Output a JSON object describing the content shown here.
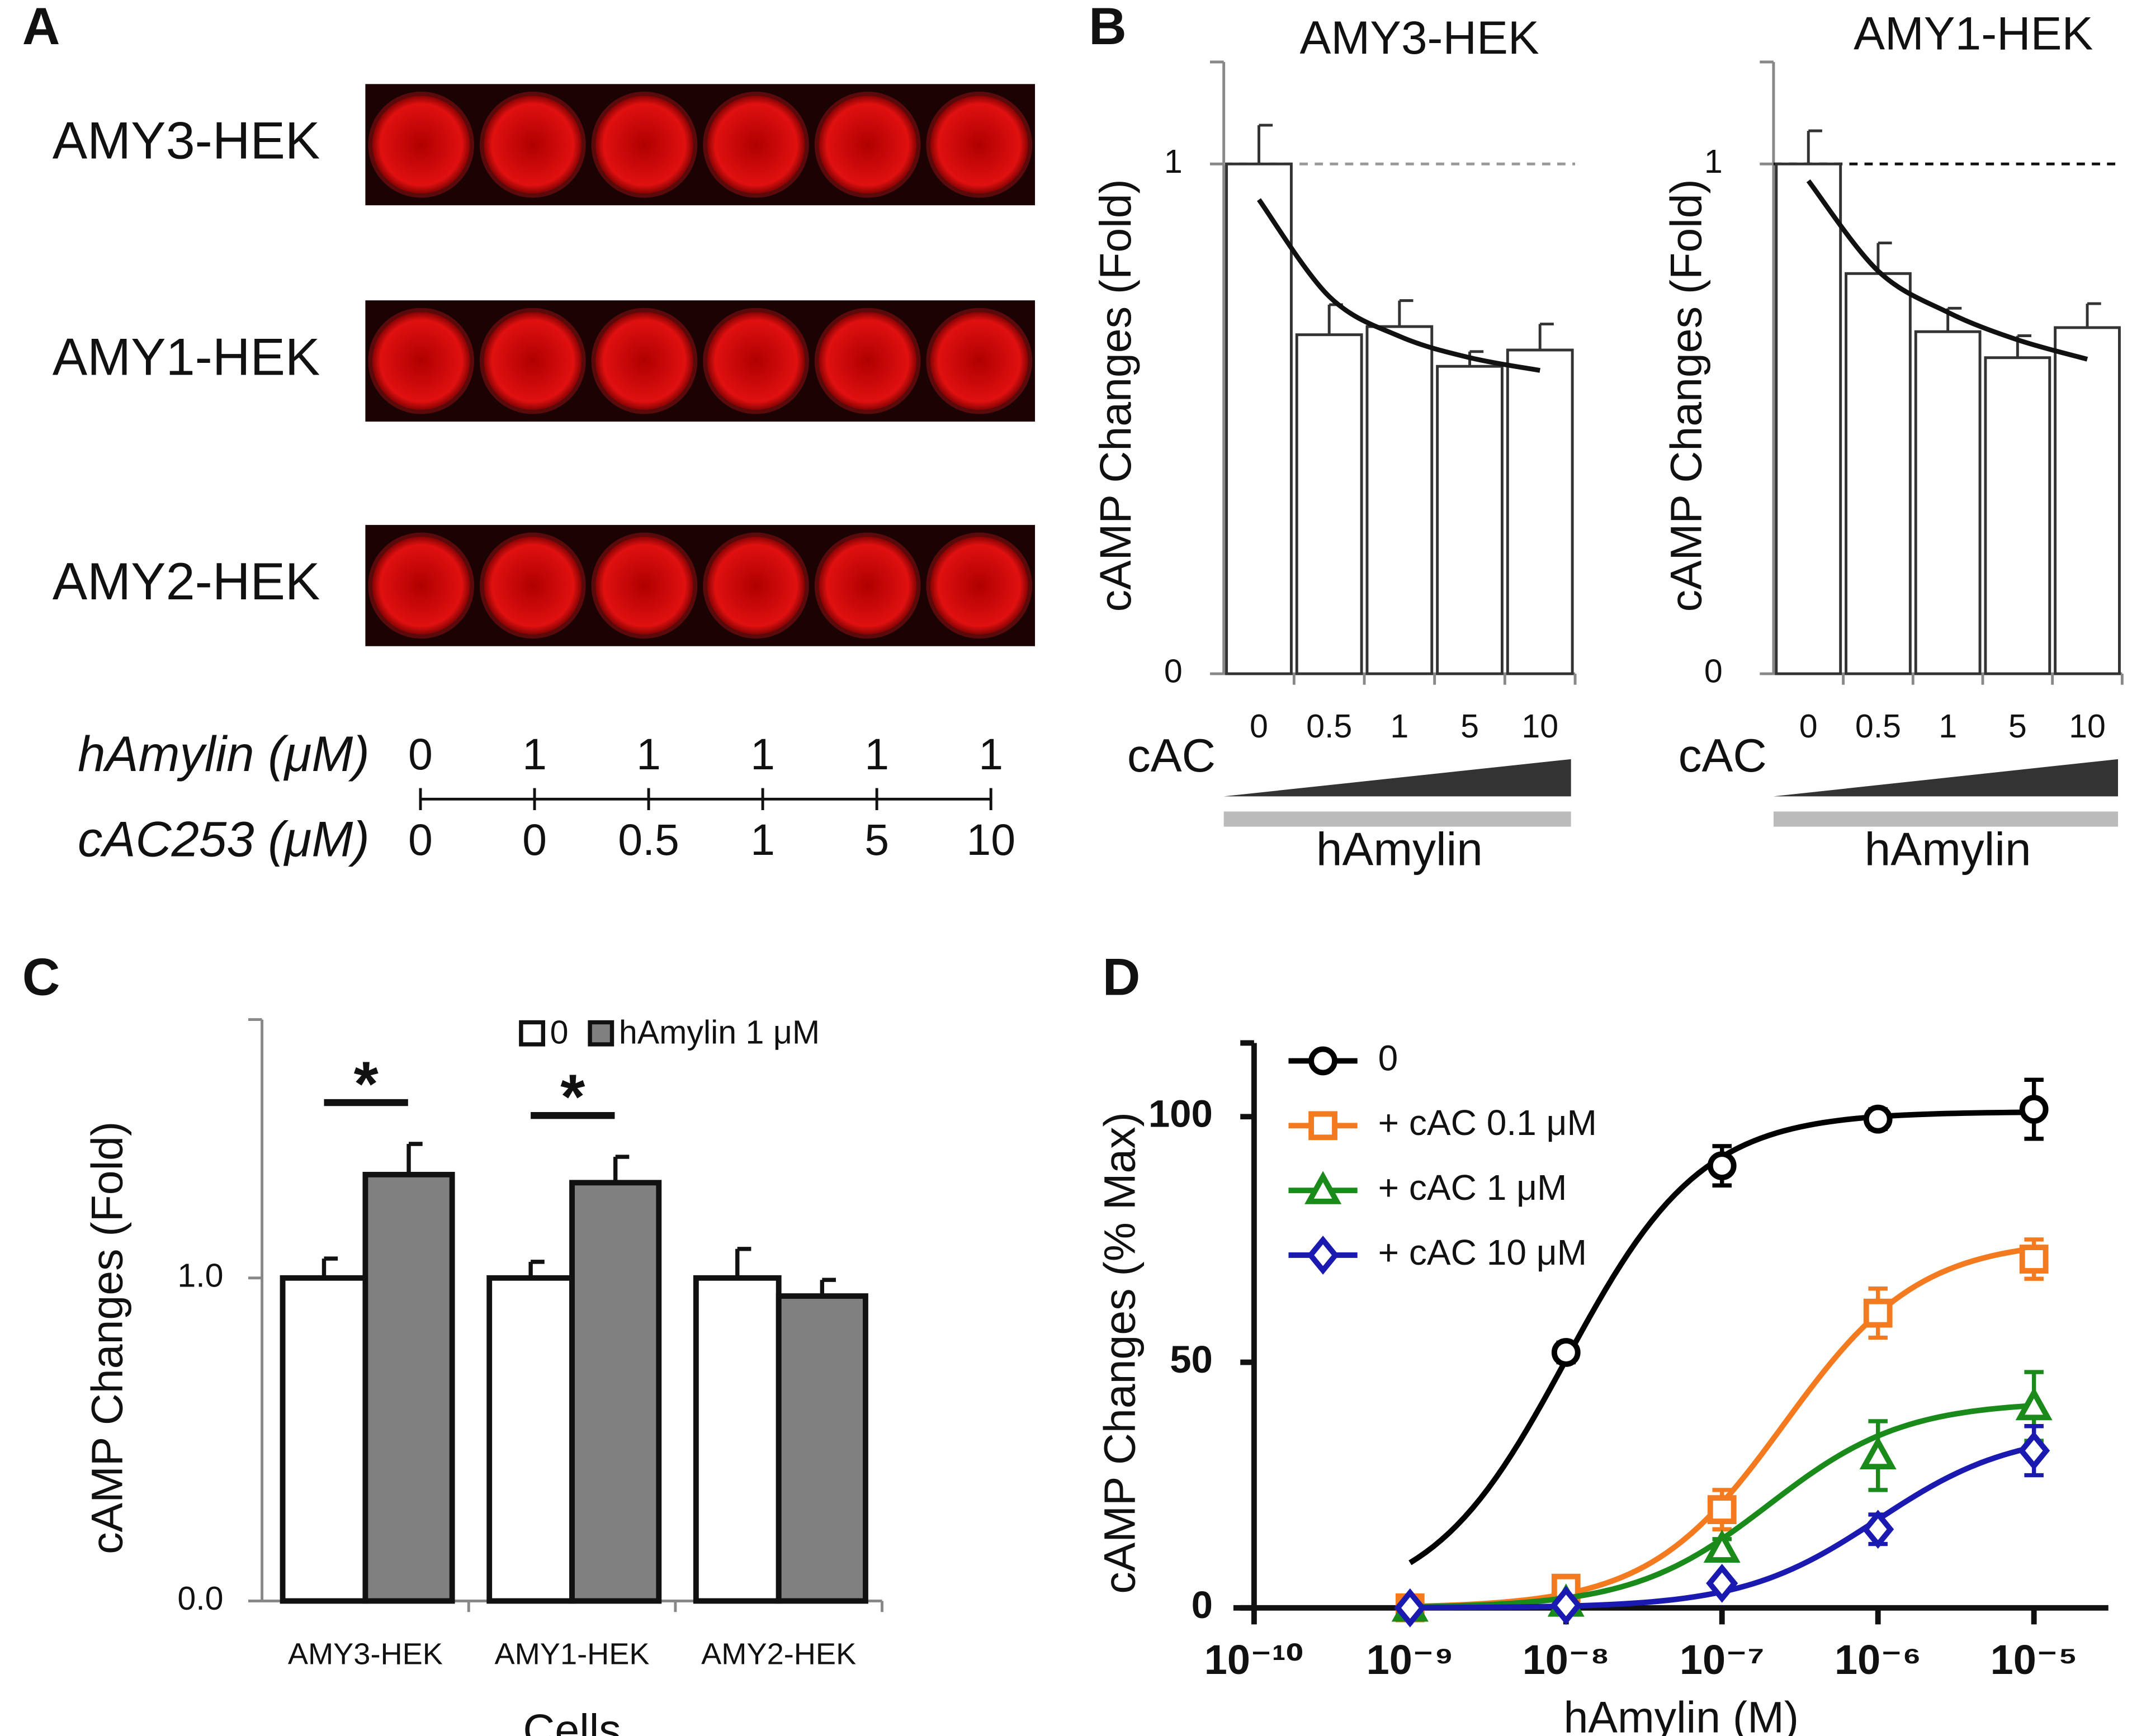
{
  "panel_a": {
    "label": "A",
    "rows": [
      "AMY3-HEK",
      "AMY1-HEK",
      "AMY2-HEK"
    ],
    "conditions": [
      {
        "label": "hAmylin (μM)",
        "values": [
          0,
          1,
          1,
          1,
          1,
          1
        ]
      },
      {
        "label": "cAC253 (μM)",
        "values": [
          0,
          0,
          0.5,
          1,
          5,
          10
        ]
      }
    ]
  },
  "chart_data": [
    {
      "type": "bar",
      "label": "B",
      "title": "AMY3-HEK",
      "y_label": "cAMP Changes (Fold)",
      "x_label": "cAC",
      "bar_label": "hAmylin",
      "categories": [
        "0",
        "0.5",
        "1",
        "5",
        "10"
      ],
      "values": [
        1,
        0.665,
        0.681,
        0.603,
        0.635
      ],
      "errors": [
        0.076,
        0.059,
        0.051,
        0.029,
        0.051
      ],
      "color": "#ffffff",
      "fit": [
        0.93,
        0.74,
        0.662,
        0.62,
        0.595
      ],
      "reference_line": 1,
      "ylim": [
        0,
        1.2
      ],
      "yticks": [
        0,
        1
      ]
    },
    {
      "type": "bar",
      "title": "AMY1-HEK",
      "y_label": "cAMP Changes (Fold)",
      "x_label": "cAC",
      "bar_label": "hAmylin",
      "categories": [
        "0",
        "0.5",
        "1",
        "5",
        "10"
      ],
      "values": [
        1,
        0.785,
        0.671,
        0.62,
        0.679
      ],
      "errors": [
        0.065,
        0.06,
        0.046,
        0.043,
        0.047
      ],
      "color": "#ffffff",
      "fit": [
        0.967,
        0.79,
        0.709,
        0.655,
        0.617
      ],
      "reference_line": 1,
      "ylim": [
        0,
        1.2
      ],
      "yticks": [
        0,
        1
      ]
    },
    {
      "type": "grouped_bar",
      "label": "C",
      "y_label": "cAMP Changes (Fold)",
      "x_label": "Cells",
      "categories": [
        "AMY3-HEK",
        "AMY1-HEK",
        "AMY2-HEK"
      ],
      "series": [
        {
          "name": "0",
          "color": "#ffffff",
          "values": [
            1,
            1,
            1
          ],
          "errors": [
            0.06,
            0.05,
            0.09
          ]
        },
        {
          "name": "hAmylin 1 μM",
          "color": "#808080",
          "values": [
            1.32,
            1.295,
            0.944
          ],
          "errors": [
            0.095,
            0.08,
            0.05
          ]
        }
      ],
      "ylim": [
        0,
        1.8
      ],
      "yticks": [
        {
          "value": 0,
          "label": "0.0"
        },
        {
          "value": 1,
          "label": "1.0"
        }
      ],
      "annotations": [
        {
          "text": "*",
          "category": 0
        },
        {
          "text": "*",
          "category": 1
        }
      ],
      "legend": "top"
    },
    {
      "type": "scatter",
      "label": "D",
      "y_label": "cAMP Changes (% Max)",
      "x_label": "hAmylin (M)",
      "x": [
        1e-09,
        1e-08,
        1e-07,
        1e-06,
        1e-05
      ],
      "xscale": "log",
      "xlim": [
        1e-10,
        3e-05
      ],
      "xticks": [
        {
          "value": 1e-10,
          "label": "10⁻¹⁰"
        },
        {
          "value": 1e-09,
          "label": "10⁻⁹"
        },
        {
          "value": 1e-08,
          "label": "10⁻⁸"
        },
        {
          "value": 1e-07,
          "label": "10⁻⁷"
        },
        {
          "value": 1e-06,
          "label": "10⁻⁶"
        },
        {
          "value": 1e-05,
          "label": "10⁻⁵"
        }
      ],
      "ylim": [
        0,
        115
      ],
      "yticks": [
        0,
        50,
        100
      ],
      "legend": "upper left",
      "series": [
        {
          "name": "0",
          "color": "#000000",
          "marker": "circle",
          "values": [
            null,
            52,
            90,
            99.5,
            101.5
          ],
          "errors": [
            null,
            2,
            4,
            2,
            6
          ],
          "fit": {
            "top": 101,
            "log_ec50": -8
          }
        },
        {
          "name": "+ cAC 0.1 μM",
          "color": "#f47a20",
          "marker": "square",
          "values": [
            0,
            4,
            20,
            60,
            71
          ],
          "errors": [
            0,
            1,
            4,
            5,
            4
          ],
          "fit": {
            "top": 75,
            "log_ec50": -6.6
          }
        },
        {
          "name": "+ cAC 1 μM",
          "color": "#1a8a1a",
          "marker": "triangle",
          "values": [
            0,
            1,
            12,
            31,
            41
          ],
          "errors": [
            0,
            1,
            2,
            7,
            7
          ],
          "fit": {
            "top": 42,
            "log_ec50": -6.7
          }
        },
        {
          "name": "+ cAC 10 μM",
          "color": "#1a1ab0",
          "marker": "diamond",
          "values": [
            0,
            0.5,
            5,
            16,
            32
          ],
          "errors": [
            0,
            0.5,
            1,
            3,
            5
          ],
          "fit": {
            "top": 36,
            "log_ec50": -6
          }
        }
      ]
    }
  ]
}
